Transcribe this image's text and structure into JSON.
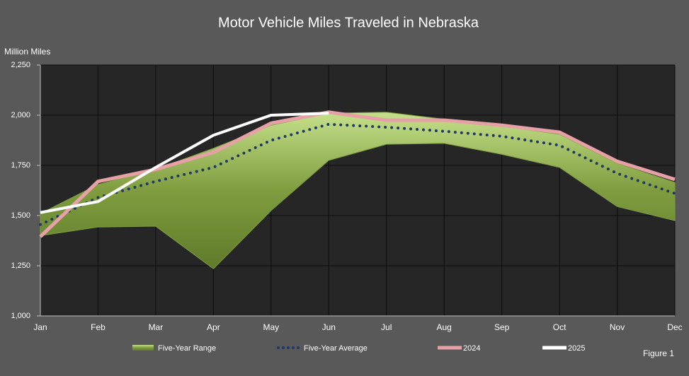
{
  "chart_data": {
    "type": "line",
    "title": "Motor Vehicle Miles Traveled in Nebraska",
    "y_label": "Million Miles",
    "annotation": "Figure 1",
    "categories": [
      "Jan",
      "Feb",
      "Mar",
      "Apr",
      "May",
      "Jun",
      "Jul",
      "Aug",
      "Sep",
      "Oct",
      "Nov",
      "Dec"
    ],
    "series": [
      {
        "name": "Five-Year Range",
        "kind": "range",
        "color": "#7f9d3f",
        "low": [
          1400,
          1443,
          1447,
          1235,
          1525,
          1775,
          1855,
          1860,
          1805,
          1740,
          1545,
          1475
        ],
        "high": [
          1510,
          1655,
          1730,
          1835,
          1950,
          2010,
          2015,
          1980,
          1945,
          1905,
          1760,
          1665
        ]
      },
      {
        "name": "Five-Year Average",
        "kind": "dotted",
        "color": "#1f3864",
        "values": [
          1455,
          1590,
          1670,
          1740,
          1875,
          1955,
          1940,
          1920,
          1895,
          1850,
          1710,
          1610
        ]
      },
      {
        "name": "2024",
        "kind": "solid",
        "color": "#e6a1a6",
        "values": [
          1395,
          1670,
          1730,
          1815,
          1960,
          2015,
          1975,
          1975,
          1950,
          1915,
          1770,
          1680
        ]
      },
      {
        "name": "2025",
        "kind": "solid",
        "color": "#ffffff",
        "values": [
          1515,
          1570,
          1740,
          1900,
          2000,
          2010,
          null,
          null,
          null,
          null,
          null,
          null
        ]
      }
    ],
    "ylim": [
      1000,
      2250
    ],
    "yticks": [
      {
        "value": 1000,
        "label": "1,000"
      },
      {
        "value": 1250,
        "label": "1,250"
      },
      {
        "value": 1500,
        "label": "1,500"
      },
      {
        "value": 1750,
        "label": "1,750"
      },
      {
        "value": 2000,
        "label": "2,000"
      },
      {
        "value": 2250,
        "label": "2,250"
      }
    ],
    "grid": true
  }
}
